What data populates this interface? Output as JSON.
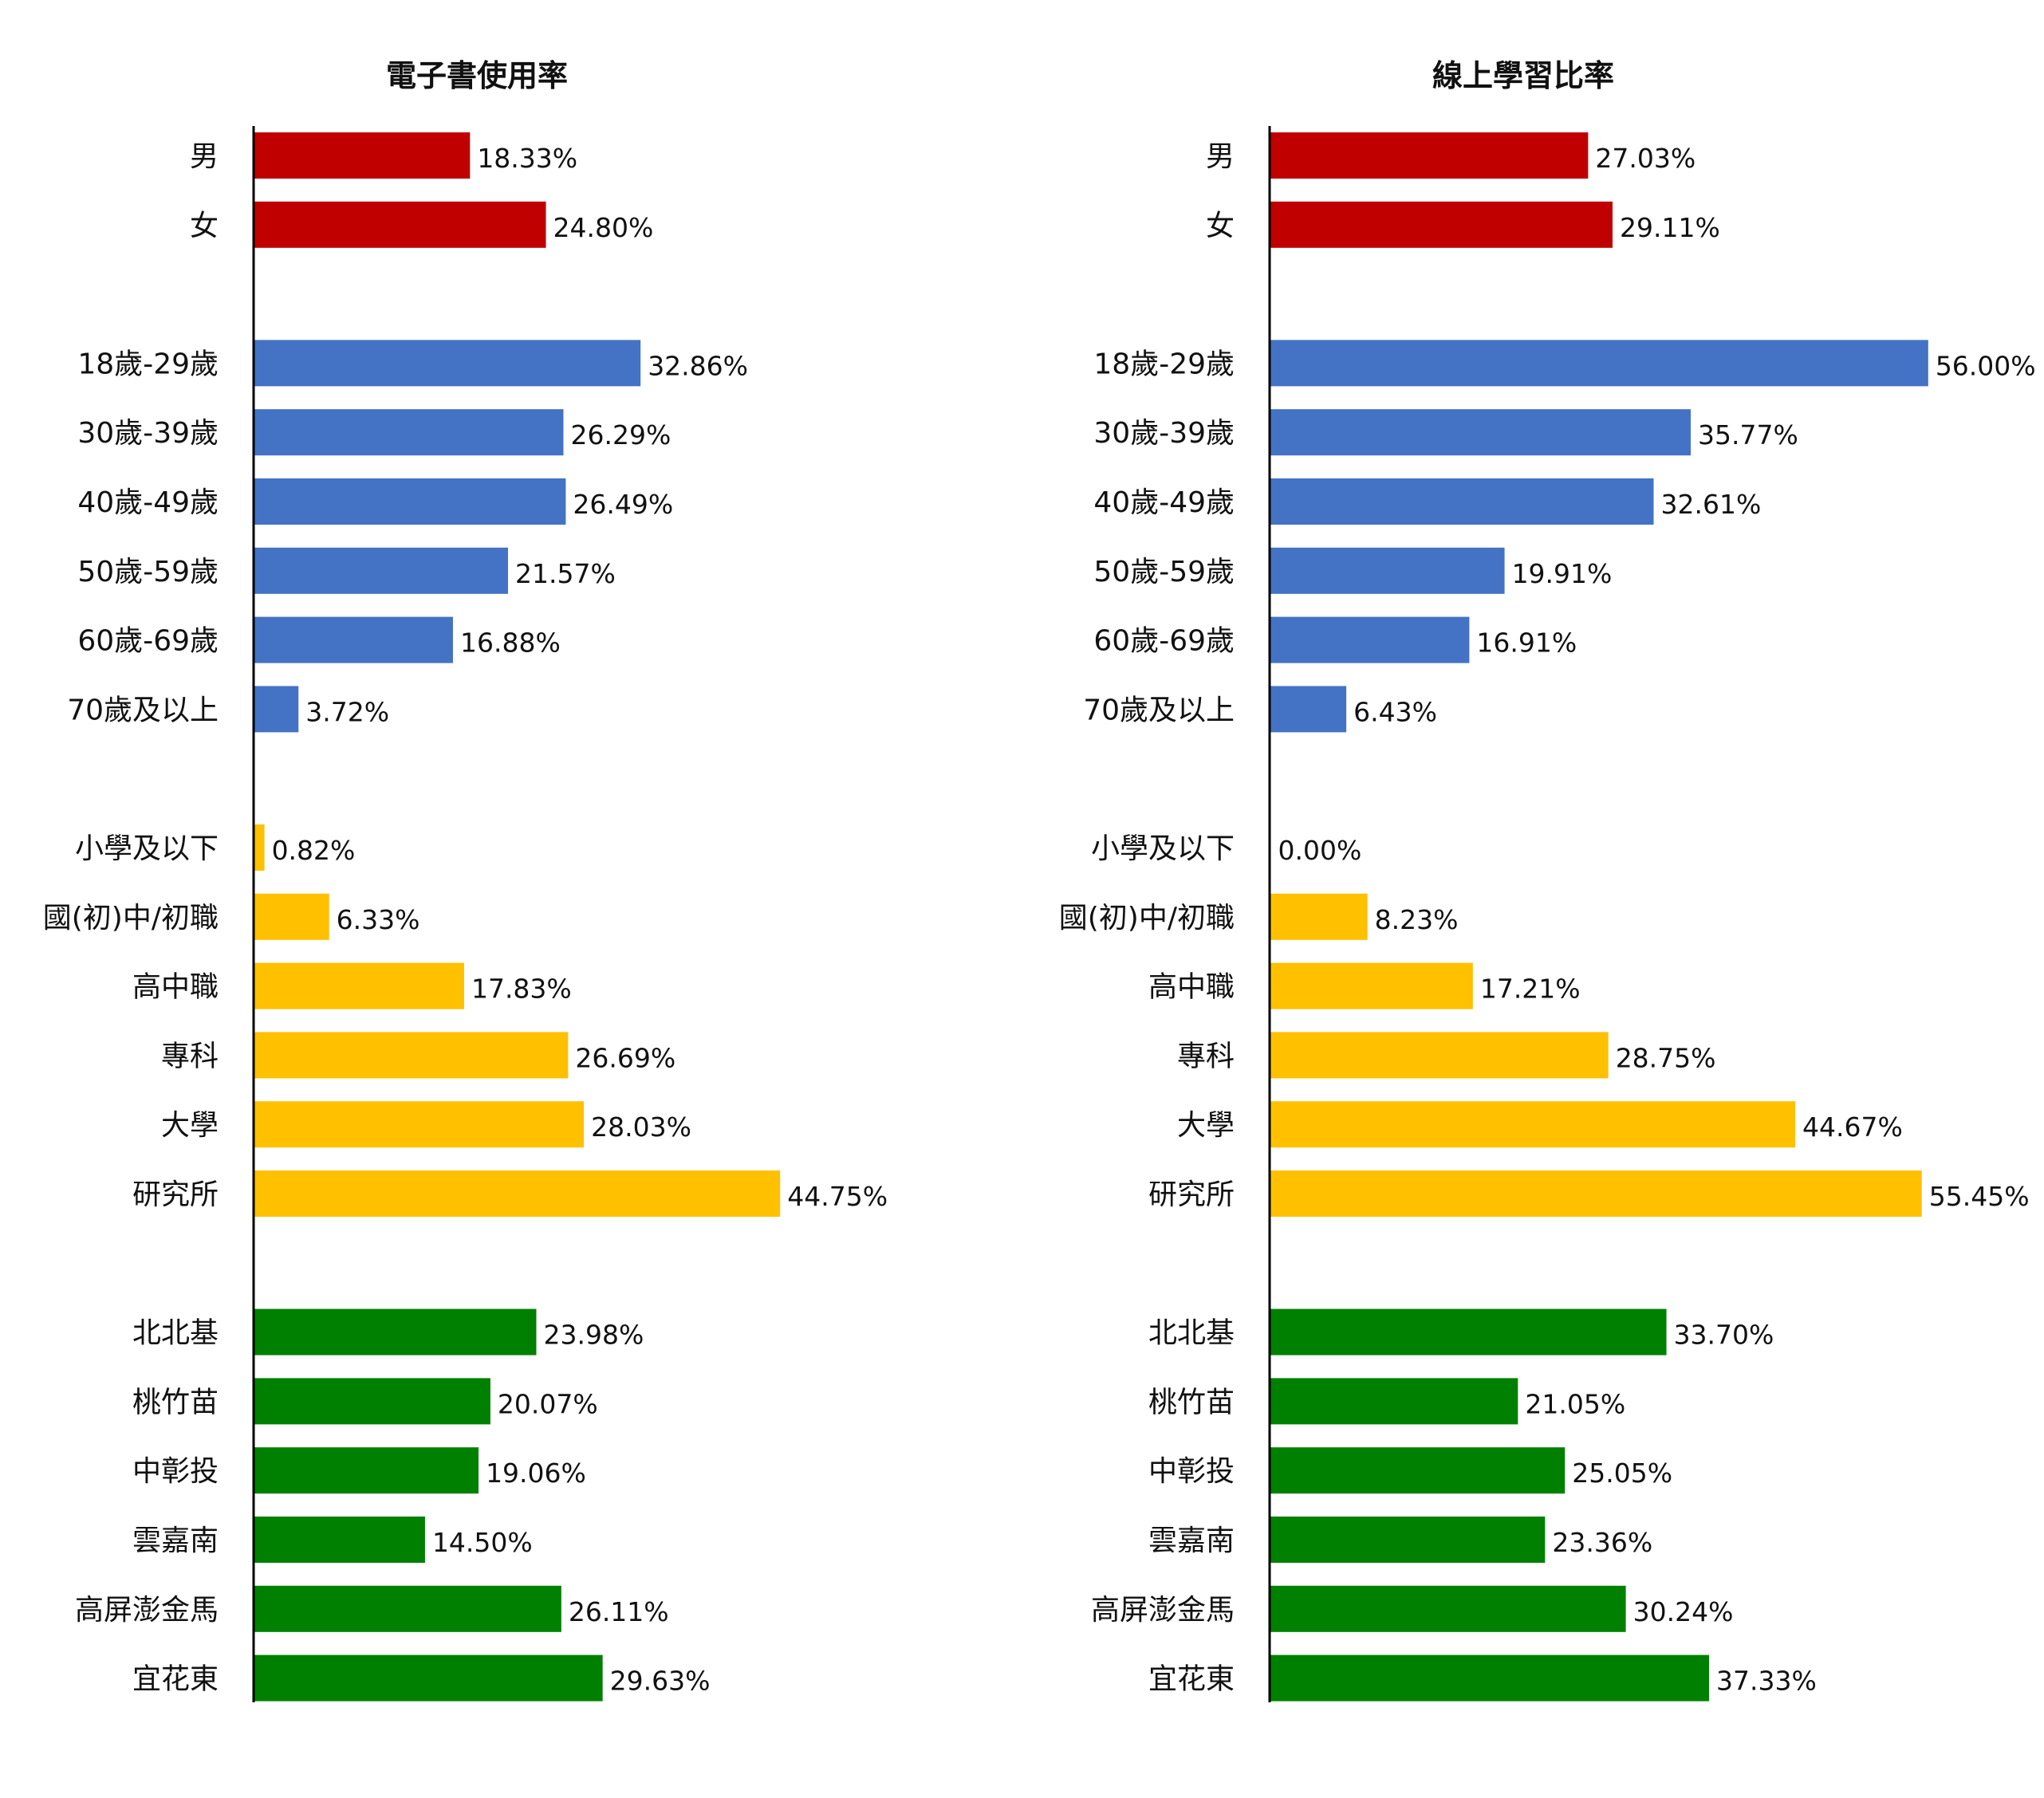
{
  "colors": {
    "gender": "#c00000",
    "age": "#4472c4",
    "education": "#ffc000",
    "region": "#008000",
    "axis": "#000000",
    "text": "#111111"
  },
  "chart_data": [
    {
      "type": "bar",
      "orientation": "horizontal",
      "title": "電子書使用率",
      "categories": [
        "男",
        "女",
        "18歲-29歲",
        "30歲-39歲",
        "40歲-49歲",
        "50歲-59歲",
        "60歲-69歲",
        "70歲及以上",
        "小學及以下",
        "國(初)中/初職",
        "高中職",
        "專科",
        "大學",
        "研究所",
        "北北基",
        "桃竹苗",
        "中彰投",
        "雲嘉南",
        "高屏澎金馬",
        "宜花東"
      ],
      "groups": [
        "gender",
        "gender",
        "age",
        "age",
        "age",
        "age",
        "age",
        "age",
        "education",
        "education",
        "education",
        "education",
        "education",
        "education",
        "region",
        "region",
        "region",
        "region",
        "region",
        "region"
      ],
      "values": [
        18.33,
        24.8,
        32.86,
        26.29,
        26.49,
        21.57,
        16.88,
        3.72,
        0.82,
        6.33,
        17.83,
        26.69,
        28.03,
        44.75,
        23.98,
        20.07,
        19.06,
        14.5,
        26.11,
        29.63
      ],
      "labels": [
        "18.33%",
        "24.80%",
        "32.86%",
        "26.29%",
        "26.49%",
        "21.57%",
        "16.88%",
        "3.72%",
        "0.82%",
        "6.33%",
        "17.83%",
        "26.69%",
        "28.03%",
        "44.75%",
        "23.98%",
        "20.07%",
        "19.06%",
        "14.50%",
        "26.11%",
        "29.63%"
      ],
      "xlim": [
        0,
        56
      ],
      "grid": false,
      "legend": "none"
    },
    {
      "type": "bar",
      "orientation": "horizontal",
      "title": "線上學習比率",
      "categories": [
        "男",
        "女",
        "18歲-29歲",
        "30歲-39歲",
        "40歲-49歲",
        "50歲-59歲",
        "60歲-69歲",
        "70歲及以上",
        "小學及以下",
        "國(初)中/初職",
        "高中職",
        "專科",
        "大學",
        "研究所",
        "北北基",
        "桃竹苗",
        "中彰投",
        "雲嘉南",
        "高屏澎金馬",
        "宜花東"
      ],
      "groups": [
        "gender",
        "gender",
        "age",
        "age",
        "age",
        "age",
        "age",
        "age",
        "education",
        "education",
        "education",
        "education",
        "education",
        "education",
        "region",
        "region",
        "region",
        "region",
        "region",
        "region"
      ],
      "values": [
        27.03,
        29.11,
        56.0,
        35.77,
        32.61,
        19.91,
        16.91,
        6.43,
        0.0,
        8.23,
        17.21,
        28.75,
        44.67,
        55.45,
        33.7,
        21.05,
        25.05,
        23.36,
        30.24,
        37.33
      ],
      "labels": [
        "27.03%",
        "29.11%",
        "56.00%",
        "35.77%",
        "32.61%",
        "19.91%",
        "16.91%",
        "6.43%",
        "0.00%",
        "8.23%",
        "17.21%",
        "28.75%",
        "44.67%",
        "55.45%",
        "33.70%",
        "21.05%",
        "25.05%",
        "23.36%",
        "30.24%",
        "37.33%"
      ],
      "xlim": [
        0,
        56
      ],
      "grid": false,
      "legend": "none"
    }
  ]
}
